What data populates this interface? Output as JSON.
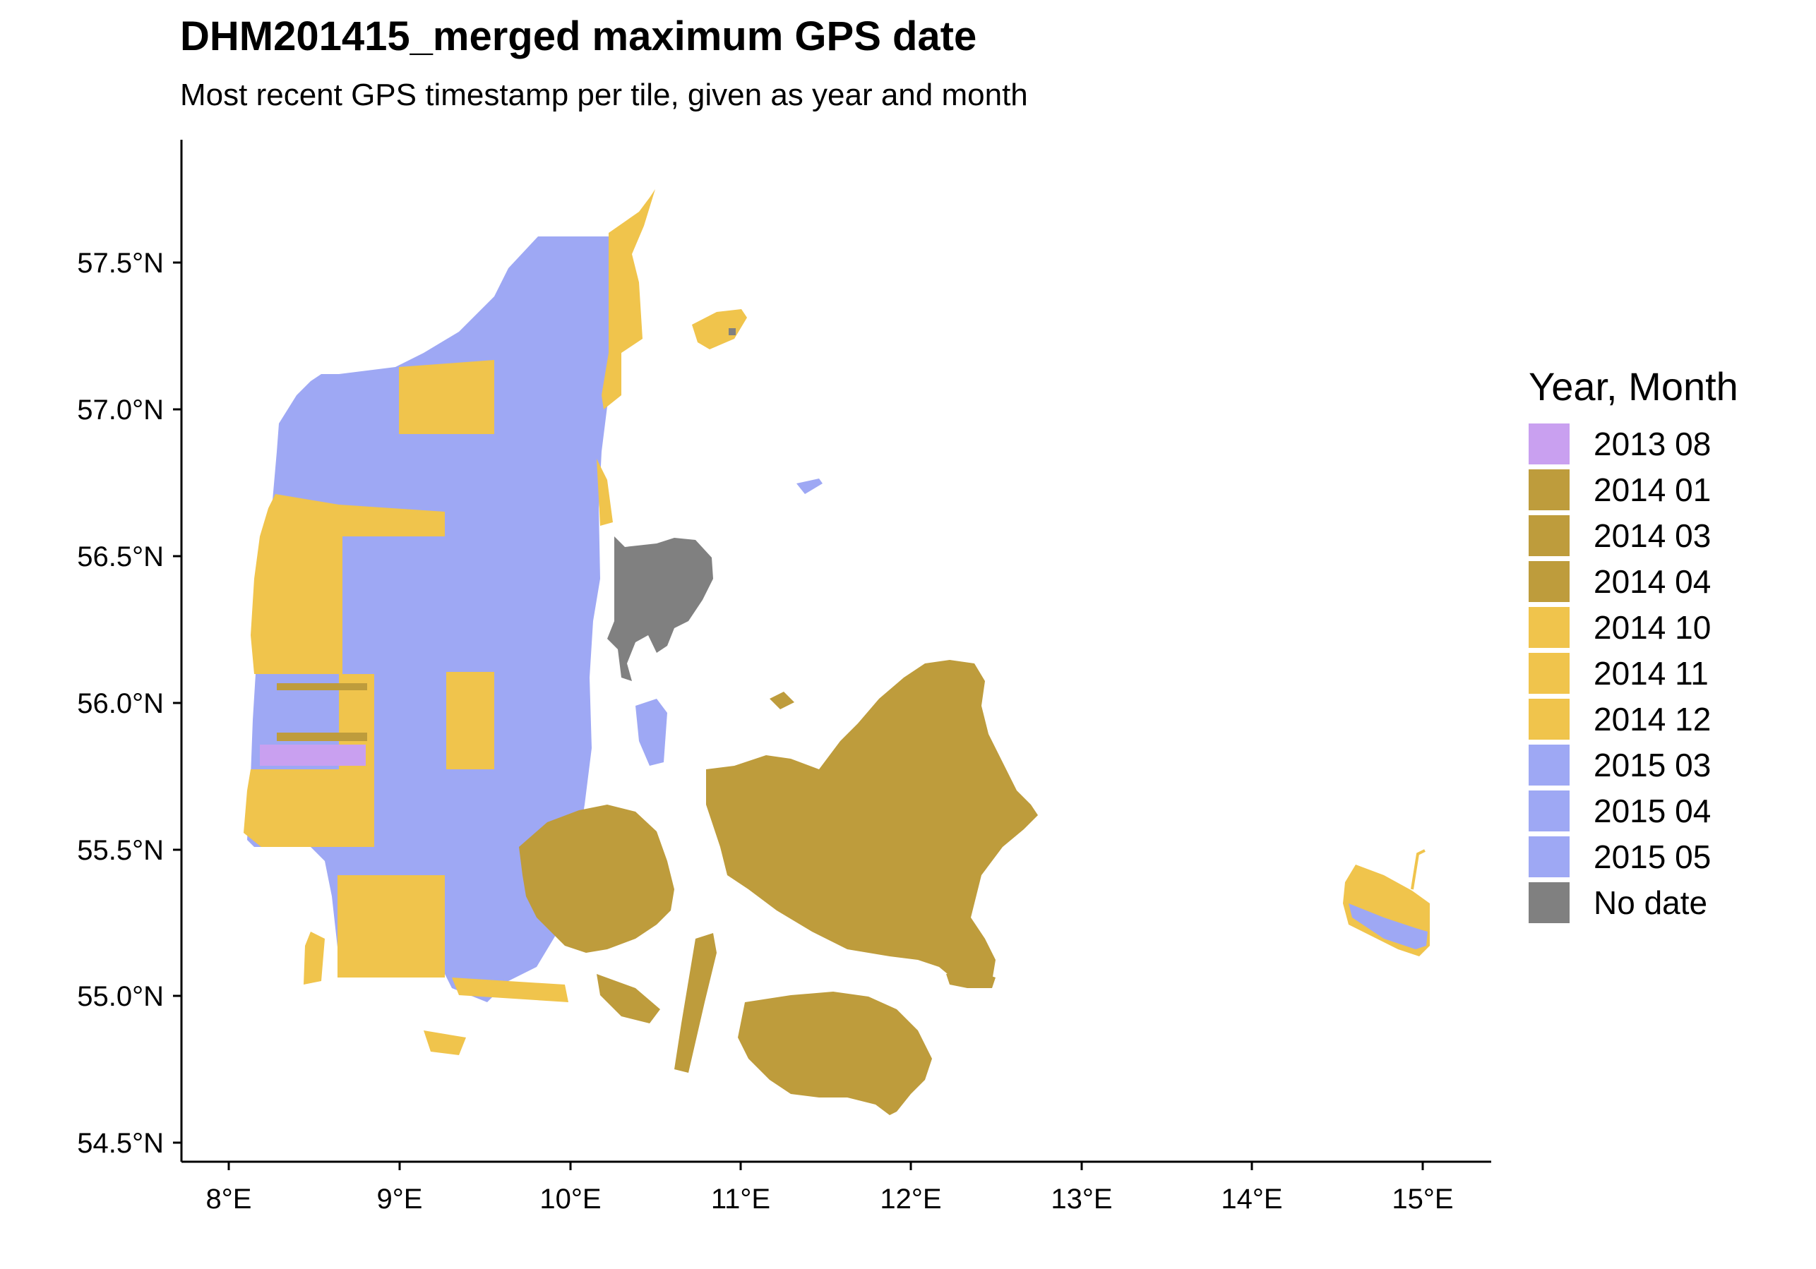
{
  "title": "DHM201415_merged maximum GPS date",
  "subtitle": "Most recent GPS timestamp per tile, given as year and month",
  "colors": {
    "c2013_08": "#c9a0f0",
    "c2014": "#be9c3c",
    "c2014_late": "#f0c44c",
    "c2015": "#9ea8f4",
    "no_date": "#808080",
    "axis": "#000000"
  },
  "legend": {
    "title": "Year, Month",
    "items": [
      {
        "label": "2013 08",
        "color": "#c9a0f0"
      },
      {
        "label": "2014 01",
        "color": "#be9c3c"
      },
      {
        "label": "2014 03",
        "color": "#be9c3c"
      },
      {
        "label": "2014 04",
        "color": "#be9c3c"
      },
      {
        "label": "2014 10",
        "color": "#f0c44c"
      },
      {
        "label": "2014 11",
        "color": "#f0c44c"
      },
      {
        "label": "2014 12",
        "color": "#f0c44c"
      },
      {
        "label": "2015 03",
        "color": "#9ea8f4"
      },
      {
        "label": "2015 04",
        "color": "#9ea8f4"
      },
      {
        "label": "2015 05",
        "color": "#9ea8f4"
      },
      {
        "label": "No date",
        "color": "#808080"
      }
    ]
  },
  "axes": {
    "y_ticks": [
      "57.5°N",
      "57.0°N",
      "56.5°N",
      "56.0°N",
      "55.5°N",
      "55.0°N",
      "54.5°N"
    ],
    "x_ticks": [
      "8°E",
      "9°E",
      "10°E",
      "11°E",
      "12°E",
      "13°E",
      "14°E",
      "15°E"
    ]
  }
}
